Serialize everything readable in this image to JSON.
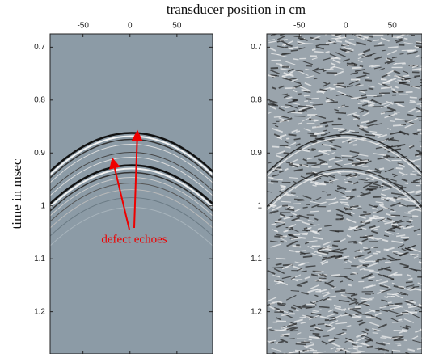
{
  "chart_data": [
    {
      "type": "image",
      "title": "transducer position in cm",
      "ylabel": "time in msec",
      "annotation": "defect echoes",
      "xlim": [
        -85,
        88
      ],
      "xticks": [
        -50,
        0,
        50
      ],
      "ylim": [
        0.675,
        1.28
      ],
      "yticks": [
        0.7,
        0.8,
        0.9,
        1,
        1.1,
        1.2
      ],
      "y_inverted": true
    },
    {
      "type": "image",
      "xlim": [
        -85,
        82
      ],
      "xticks": [
        -50,
        0,
        50
      ],
      "ylim": [
        0.675,
        1.28
      ],
      "yticks": [
        0.7,
        0.8,
        0.9,
        1,
        1.1,
        1.2
      ],
      "y_inverted": true
    }
  ]
}
